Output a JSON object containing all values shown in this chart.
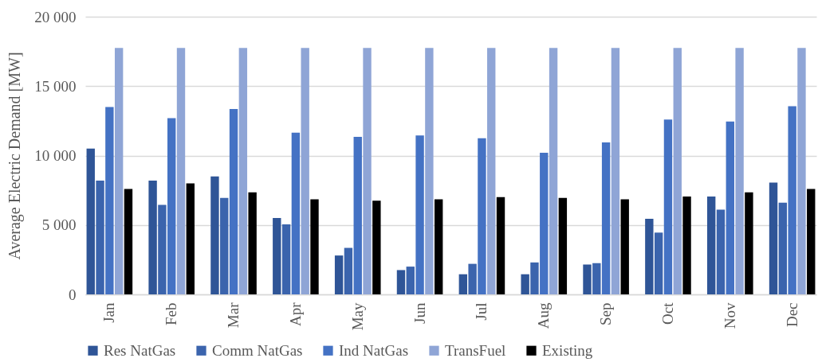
{
  "chart_data": {
    "type": "bar",
    "ylabel": "Average Electric Demand [MW]",
    "categories": [
      "Jan",
      "Feb",
      "Mar",
      "Apr",
      "May",
      "Jun",
      "Jul",
      "Aug",
      "Sep",
      "Oct",
      "Nov",
      "Dec"
    ],
    "series": [
      {
        "name": "Res NatGas",
        "color": "#2f5597",
        "values": [
          10500,
          8200,
          8500,
          5500,
          2800,
          1750,
          1450,
          1450,
          2150,
          5450,
          7050,
          8050
        ]
      },
      {
        "name": "Comm NatGas",
        "color": "#3b64ad",
        "values": [
          8200,
          6450,
          6950,
          5050,
          3350,
          2000,
          2200,
          2300,
          2250,
          4450,
          6100,
          6600
        ]
      },
      {
        "name": "Ind NatGas",
        "color": "#4472c4",
        "values": [
          13500,
          12700,
          13350,
          11650,
          11350,
          11450,
          11250,
          10200,
          10950,
          12600,
          12450,
          13550
        ]
      },
      {
        "name": "TransFuel",
        "color": "#8fa5d6",
        "values": [
          17750,
          17750,
          17750,
          17750,
          17750,
          17750,
          17750,
          17750,
          17750,
          17750,
          17750,
          17750
        ]
      },
      {
        "name": "Existing",
        "color": "#000000",
        "values": [
          7600,
          8000,
          7350,
          6850,
          6750,
          6850,
          7000,
          6950,
          6850,
          7050,
          7350,
          7600
        ]
      }
    ],
    "ylim": [
      0,
      20000
    ],
    "yticks": [
      0,
      {
        "value": 5000,
        "label": "5 000"
      },
      {
        "value": 10000,
        "label": "10 000"
      },
      {
        "value": 15000,
        "label": "15 000"
      },
      {
        "value": 20000,
        "label": "20 000"
      }
    ],
    "grid": "y",
    "legend": "bottom"
  }
}
